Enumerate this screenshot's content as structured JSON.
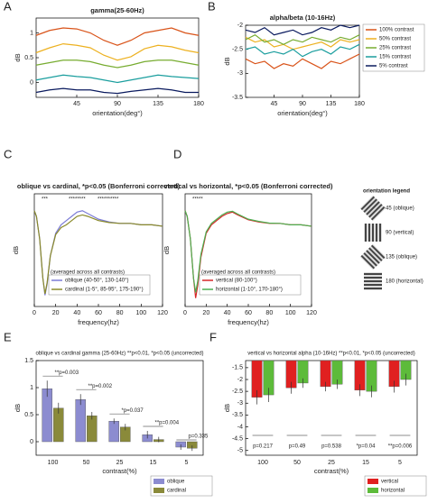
{
  "chart_data": [
    {
      "panel": "A",
      "type": "line",
      "title": "gamma(25-60Hz)",
      "xlabel": "orientation(deg°)",
      "ylabel": "dB",
      "x": [
        0,
        15,
        30,
        45,
        60,
        75,
        90,
        105,
        120,
        135,
        150,
        165,
        180
      ],
      "xlim": [
        0,
        180
      ],
      "xticks": [
        45,
        90,
        135,
        180
      ],
      "ylim": [
        -0.3,
        1.3
      ],
      "yticks": [
        0,
        0.5,
        1
      ],
      "series": [
        {
          "color": "#d95319",
          "values": [
            0.95,
            1.05,
            1.1,
            1.08,
            1.0,
            0.85,
            0.75,
            0.85,
            1.0,
            1.05,
            1.1,
            1.0,
            0.95
          ]
        },
        {
          "color": "#edb120",
          "values": [
            0.6,
            0.7,
            0.78,
            0.75,
            0.7,
            0.55,
            0.45,
            0.52,
            0.68,
            0.75,
            0.72,
            0.65,
            0.6
          ]
        },
        {
          "color": "#77ac30",
          "values": [
            0.35,
            0.4,
            0.45,
            0.45,
            0.42,
            0.35,
            0.3,
            0.35,
            0.42,
            0.45,
            0.45,
            0.4,
            0.35
          ]
        },
        {
          "color": "#1a9e9e",
          "values": [
            0.05,
            0.1,
            0.15,
            0.12,
            0.1,
            0.05,
            0.0,
            0.05,
            0.1,
            0.15,
            0.12,
            0.1,
            0.08
          ]
        },
        {
          "color": "#0a1a5e",
          "values": [
            -0.2,
            -0.15,
            -0.12,
            -0.15,
            -0.15,
            -0.2,
            -0.22,
            -0.18,
            -0.15,
            -0.12,
            -0.15,
            -0.2,
            -0.2
          ]
        }
      ]
    },
    {
      "panel": "B",
      "type": "line",
      "title": "alpha/beta (10-16Hz)",
      "xlabel": "orientation(deg°)",
      "ylabel": "dB",
      "legend": "outside right",
      "x": [
        0,
        15,
        30,
        45,
        60,
        75,
        90,
        105,
        120,
        135,
        150,
        165,
        180
      ],
      "xlim": [
        0,
        180
      ],
      "xticks": [
        45,
        90,
        135,
        180
      ],
      "ylim": [
        -3.5,
        -2
      ],
      "yticks": [
        -3.5,
        -3,
        -2.5,
        -2
      ],
      "series": [
        {
          "name": "100% contrast",
          "color": "#d95319",
          "values": [
            -2.7,
            -2.8,
            -2.75,
            -2.9,
            -2.8,
            -2.85,
            -2.7,
            -2.8,
            -2.9,
            -2.75,
            -2.8,
            -2.7,
            -2.6
          ]
        },
        {
          "name": "50% contrast",
          "color": "#edb120",
          "values": [
            -2.25,
            -2.35,
            -2.3,
            -2.45,
            -2.4,
            -2.5,
            -2.45,
            -2.4,
            -2.35,
            -2.45,
            -2.3,
            -2.35,
            -2.3
          ]
        },
        {
          "name": "25% contrast",
          "color": "#77ac30",
          "values": [
            -2.3,
            -2.2,
            -2.35,
            -2.3,
            -2.4,
            -2.3,
            -2.35,
            -2.25,
            -2.3,
            -2.35,
            -2.25,
            -2.3,
            -2.2
          ]
        },
        {
          "name": "15% contrast",
          "color": "#1a9e9e",
          "values": [
            -2.5,
            -2.45,
            -2.6,
            -2.55,
            -2.6,
            -2.5,
            -2.65,
            -2.55,
            -2.5,
            -2.6,
            -2.45,
            -2.5,
            -2.4
          ]
        },
        {
          "name": "5% contrast",
          "color": "#0a1a5e",
          "values": [
            -2.1,
            -2.15,
            -2.05,
            -2.2,
            -2.15,
            -2.1,
            -2.2,
            -2.15,
            -2.05,
            -2.1,
            -2.0,
            -2.05,
            -2.0
          ]
        }
      ]
    },
    {
      "panel": "C",
      "type": "line",
      "title": "oblique vs cardinal, *p<0.05 (Bonferroni corrected)",
      "xlabel": "frequency(hz)",
      "ylabel": "dB",
      "legend": "lower left",
      "note": "(averaged across all contrasts)",
      "sig_marks": [
        "***",
        "********",
        "**********"
      ],
      "x": [
        0,
        2,
        5,
        8,
        10,
        12,
        15,
        20,
        25,
        30,
        35,
        40,
        45,
        50,
        60,
        70,
        80,
        90,
        100,
        110,
        120
      ],
      "xlim": [
        0,
        120
      ],
      "xticks": [
        0,
        20,
        40,
        60,
        80,
        100,
        120
      ],
      "ylim": [
        -3,
        1
      ],
      "series": [
        {
          "name": "oblique (40-50°, 130-140°)",
          "color": "#7b7bd6",
          "values": [
            0.4,
            0.2,
            -0.6,
            -2.0,
            -2.6,
            -2.2,
            -1.2,
            -0.4,
            -0.1,
            0.05,
            0.2,
            0.35,
            0.4,
            0.3,
            0.1,
            0.0,
            -0.05,
            -0.05,
            -0.1,
            -0.1,
            -0.15
          ]
        },
        {
          "name": "cardinal (1-5°, 85-95°, 175-190°)",
          "color": "#8a8a2a",
          "values": [
            0.4,
            0.2,
            -0.6,
            -2.0,
            -2.55,
            -2.15,
            -1.2,
            -0.45,
            -0.2,
            -0.1,
            0.05,
            0.2,
            0.25,
            0.2,
            0.05,
            -0.02,
            -0.05,
            -0.05,
            -0.1,
            -0.1,
            -0.15
          ]
        }
      ]
    },
    {
      "panel": "D",
      "type": "line",
      "title": "vertical vs horizontal, *p<0.05 (Bonferroni corrected)",
      "xlabel": "frequency(hz)",
      "ylabel": "dB",
      "legend": "lower left",
      "note": "(averaged across all contrasts)",
      "sig_marks": [
        "*****"
      ],
      "x": [
        0,
        2,
        5,
        8,
        10,
        12,
        15,
        20,
        25,
        30,
        35,
        40,
        45,
        50,
        60,
        70,
        80,
        90,
        100,
        110,
        120
      ],
      "xlim": [
        0,
        120
      ],
      "xticks": [
        0,
        20,
        40,
        60,
        80,
        100,
        120
      ],
      "ylim": [
        -3,
        1
      ],
      "series": [
        {
          "name": "vertical (80-100°)",
          "color": "#d62728",
          "values": [
            0.4,
            0.2,
            -0.6,
            -2.0,
            -2.7,
            -2.25,
            -1.25,
            -0.4,
            -0.1,
            0.05,
            0.2,
            0.3,
            0.35,
            0.25,
            0.08,
            0.0,
            -0.05,
            -0.05,
            -0.1,
            -0.1,
            -0.15
          ]
        },
        {
          "name": "horizontal (1-10°, 170-180°)",
          "color": "#4caf50",
          "values": [
            0.4,
            0.2,
            -0.6,
            -2.0,
            -2.5,
            -2.1,
            -1.15,
            -0.35,
            -0.05,
            0.1,
            0.25,
            0.35,
            0.38,
            0.28,
            0.1,
            0.02,
            -0.04,
            -0.05,
            -0.1,
            -0.1,
            -0.15
          ]
        }
      ]
    },
    {
      "panel": "E",
      "type": "bar",
      "title": "oblique vs cardinal gamma (25-60Hz) **p<0.01, *p<0.05 (uncorrected)",
      "xlabel": "contrast(%)",
      "ylabel": "dB",
      "legend": "outside lower right",
      "categories": [
        "100",
        "50",
        "25",
        "15",
        "5"
      ],
      "ylim": [
        -0.25,
        1.5
      ],
      "yticks": [
        0,
        0.5,
        1,
        1.5
      ],
      "p_values": [
        "**p=0.003",
        "**p=0.002",
        "*p=0.037",
        "**p=0.004",
        "p=0.335"
      ],
      "series": [
        {
          "name": "oblique",
          "color": "#8c8cd0",
          "values": [
            0.98,
            0.78,
            0.38,
            0.13,
            -0.1
          ],
          "errors": [
            0.15,
            0.1,
            0.05,
            0.07,
            0.05
          ]
        },
        {
          "name": "cardinal",
          "color": "#8a8a3a",
          "values": [
            0.62,
            0.48,
            0.27,
            0.04,
            -0.12
          ],
          "errors": [
            0.1,
            0.07,
            0.06,
            0.05,
            0.05
          ]
        }
      ]
    },
    {
      "panel": "F",
      "type": "bar",
      "title": "vertical vs horizontal alpha (10-16Hz) **p<0.01, *p<0.05 (uncorrected)",
      "xlabel": "contrast(%)",
      "ylabel": "dB",
      "legend": "outside lower right",
      "categories": [
        "100",
        "50",
        "25",
        "15",
        "5"
      ],
      "ylim": [
        -5.2,
        -1.2
      ],
      "yticks": [
        -5,
        -4.5,
        -4,
        -3.5,
        -3,
        -2.5,
        -2,
        -1.5
      ],
      "p_values": [
        "p=0.217",
        "p=0.49",
        "p=0.538",
        "*p=0.04",
        "**p=0.006"
      ],
      "series": [
        {
          "name": "vertical",
          "color": "#e02020",
          "values": [
            -2.75,
            -2.35,
            -2.3,
            -2.45,
            -2.3
          ],
          "errors": [
            0.3,
            0.25,
            0.2,
            0.25,
            0.25
          ]
        },
        {
          "name": "horizontal",
          "color": "#5dbb3a",
          "values": [
            -2.65,
            -2.15,
            -2.2,
            -2.5,
            -2.0
          ],
          "errors": [
            0.3,
            0.2,
            0.2,
            0.25,
            0.25
          ]
        }
      ]
    }
  ],
  "orientation_legend": {
    "title": "orientation legend",
    "items": [
      "45 (oblique)",
      "90 (vertical)",
      "135 (oblique)",
      "180 (horizontal)"
    ]
  }
}
